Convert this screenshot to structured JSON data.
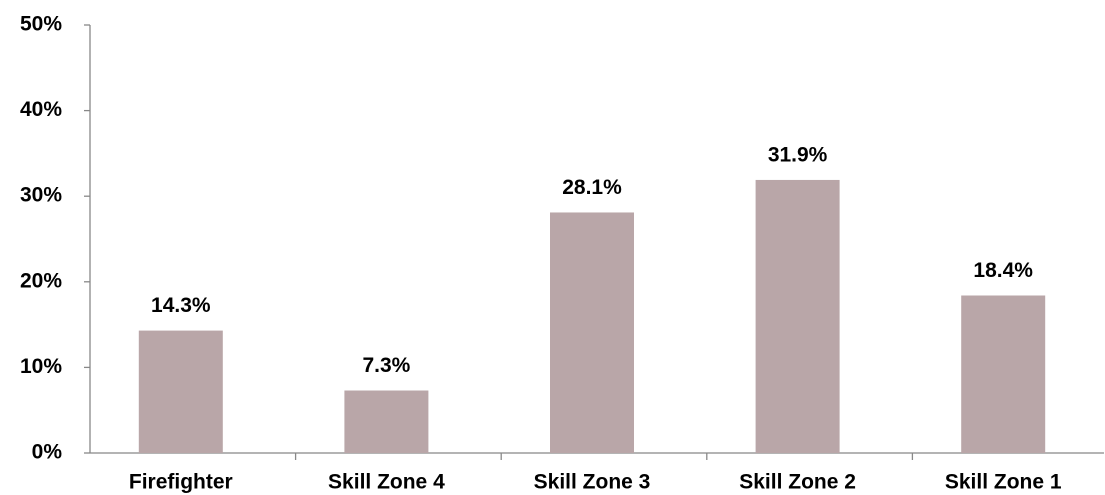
{
  "chart_data": {
    "type": "bar",
    "categories": [
      "Firefighter",
      "Skill Zone 4",
      "Skill Zone 3",
      "Skill Zone 2",
      "Skill Zone 1"
    ],
    "values": [
      14.3,
      7.3,
      28.1,
      31.9,
      18.4
    ],
    "value_labels": [
      "14.3%",
      "7.3%",
      "28.1%",
      "31.9%",
      "18.4%"
    ],
    "color": "#b9a6a8",
    "ylim": [
      0,
      50
    ],
    "yticks": [
      {
        "value": 0,
        "label": "0%"
      },
      {
        "value": 10,
        "label": "10%"
      },
      {
        "value": 20,
        "label": "20%"
      },
      {
        "value": 30,
        "label": "30%"
      },
      {
        "value": 40,
        "label": "40%"
      },
      {
        "value": 50,
        "label": "50%"
      }
    ],
    "grid": false
  }
}
